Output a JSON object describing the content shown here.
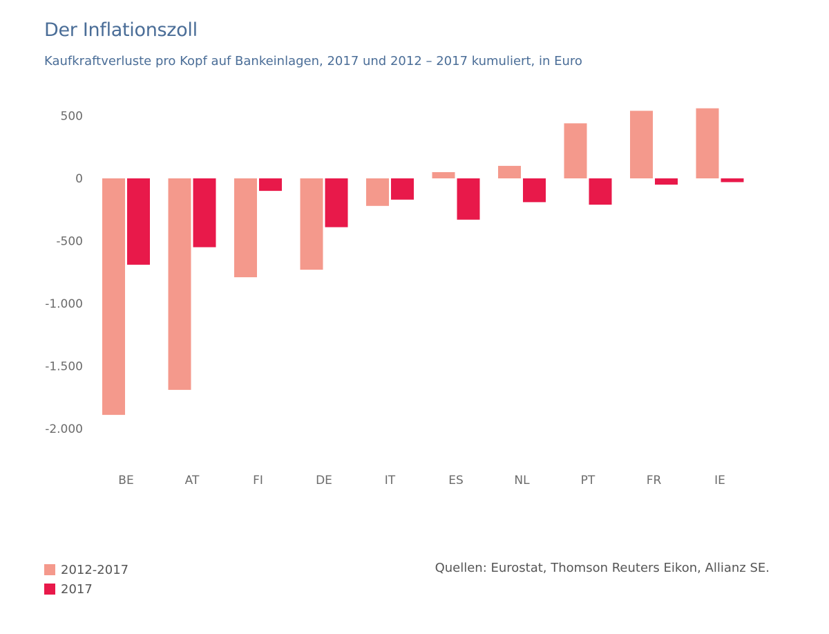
{
  "title": "Der Inflationszoll",
  "subtitle": "Kaufkraftverluste pro Kopf auf Bankeinlagen, 2017 und 2012 – 2017 kumuliert, in Euro",
  "source": "Quellen: Eurostat, Thomson Reuters Eikon, Allianz SE.",
  "chart_data": {
    "type": "bar",
    "title": "Der Inflationszoll",
    "subtitle": "Kaufkraftverluste pro Kopf auf Bankeinlagen, 2017 und 2012 – 2017 kumuliert, in Euro",
    "xlabel": "",
    "ylabel": "",
    "categories": [
      "BE",
      "AT",
      "FI",
      "DE",
      "IT",
      "ES",
      "NL",
      "PT",
      "FR",
      "IE"
    ],
    "series": [
      {
        "name": "2012-2017",
        "color": "#f4998c",
        "values": [
          -1890,
          -1690,
          -790,
          -730,
          -220,
          50,
          100,
          440,
          540,
          560
        ]
      },
      {
        "name": "2017",
        "color": "#e8194a",
        "values": [
          -690,
          -550,
          -100,
          -390,
          -170,
          -330,
          -190,
          -210,
          -50,
          -30
        ]
      }
    ],
    "ylim": [
      -2000,
      500
    ],
    "yticks": [
      500,
      0,
      -500,
      -1000,
      -1500,
      -2000
    ],
    "ytick_labels": [
      "500",
      "0",
      "-500",
      "-1.000",
      "-1.500",
      "-2.000"
    ],
    "grid": false,
    "legend_position": "bottom-left"
  }
}
